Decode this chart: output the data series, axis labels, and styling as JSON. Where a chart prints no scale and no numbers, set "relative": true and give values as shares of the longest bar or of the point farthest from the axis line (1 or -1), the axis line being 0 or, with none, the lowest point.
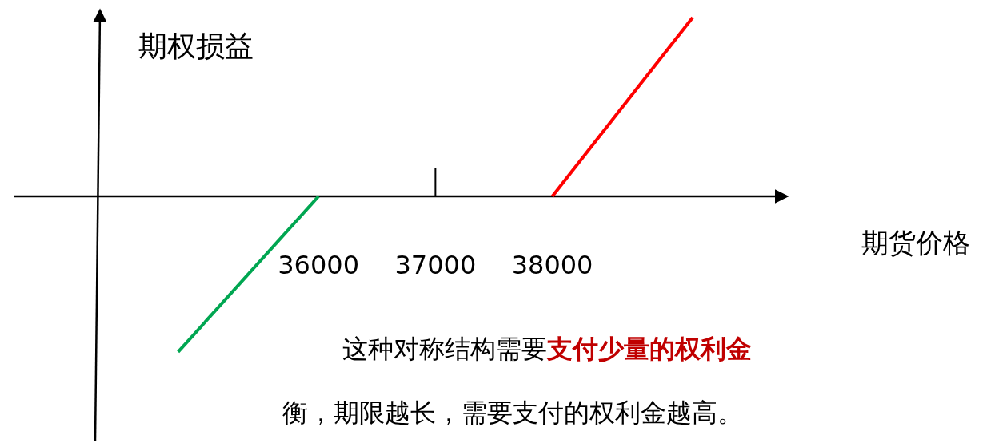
{
  "chart_data": {
    "type": "line",
    "relative": true,
    "xlabel": "期货价格",
    "ylabel": "期权损益",
    "xlim": [
      33400,
      40000
    ],
    "xticks": [
      36000,
      37000,
      38000
    ],
    "series": [
      {
        "color": "#00a651",
        "x": [
          34800,
          36000
        ],
        "values": [
          -0.87,
          0
        ]
      },
      {
        "color": "#ff0000",
        "x": [
          38000,
          39200
        ],
        "values": [
          0,
          1
        ]
      }
    ],
    "annotations": [
      "这种对称结构需要",
      "支付少量的权利金",
      "衡，期限越长，需要支付的权利金越高。"
    ],
    "grid": false,
    "marker": "none",
    "line_style": "solid"
  }
}
